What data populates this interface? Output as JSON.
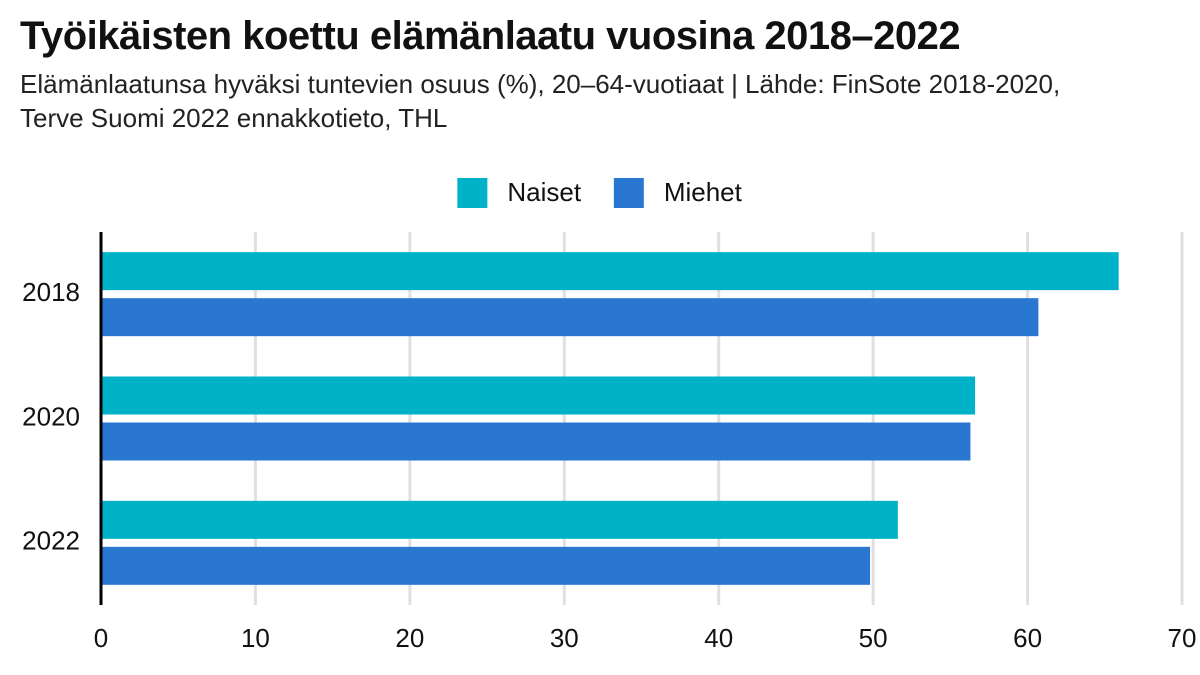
{
  "chart_data": {
    "type": "bar",
    "orientation": "horizontal",
    "title": "Työikäisten koettu elämänlaatu vuosina 2018–2022",
    "subtitle": "Elämänlaatunsa hyväksi tuntevien osuus (%), 20–64-vuotiaat | Lähde: FinSote 2018-2020, Terve Suomi 2022 ennakkotieto, THL",
    "categories": [
      "2018",
      "2020",
      "2022"
    ],
    "series": [
      {
        "name": "Naiset",
        "color": "#00b2c8",
        "values": [
          65.9,
          56.6,
          51.6
        ]
      },
      {
        "name": "Miehet",
        "color": "#2a77d2",
        "values": [
          60.7,
          56.3,
          49.8
        ]
      }
    ],
    "xlim": [
      0,
      70
    ],
    "xticks": [
      0,
      10,
      20,
      30,
      40,
      50,
      60,
      70
    ],
    "grid": true,
    "legend": "top"
  }
}
